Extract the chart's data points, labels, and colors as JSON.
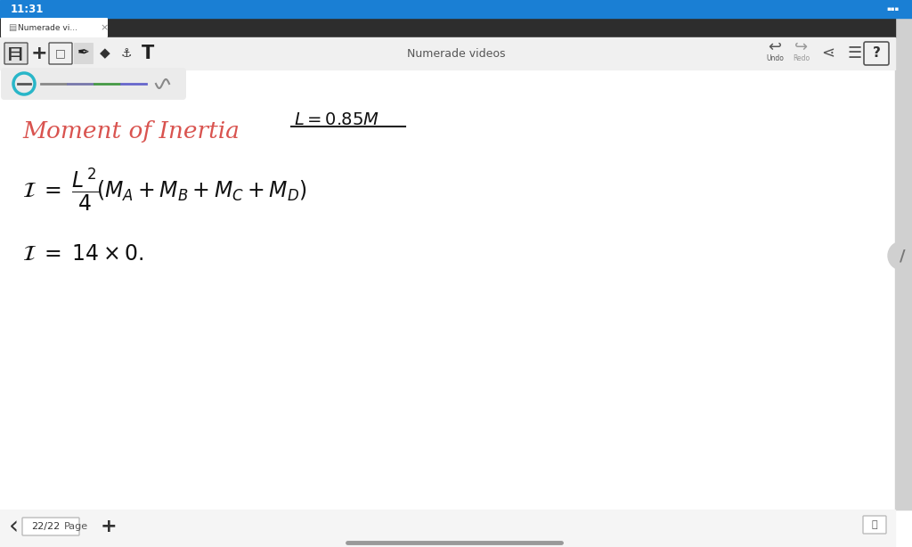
{
  "bg_color": "#ffffff",
  "top_bar_bg": "#1a7fd4",
  "top_bar_text": "11:31",
  "top_bar_text_color": "#ffffff",
  "tab_bg": "#2d2d2d",
  "tab_text": "Numerade vi...   ✕",
  "toolbar_bg": "#f0f0f0",
  "center_top_text": "Numerade videos",
  "red_title": "Moment of Inertia",
  "red_color": "#d9534f",
  "page_number": "22/22",
  "figsize": [
    10.24,
    6.14
  ],
  "dpi": 100,
  "scrollbar_bg": "#d0d0d0",
  "bottom_bar_bg": "#f5f5f5",
  "tools_pill_bg": "#ebebeb"
}
